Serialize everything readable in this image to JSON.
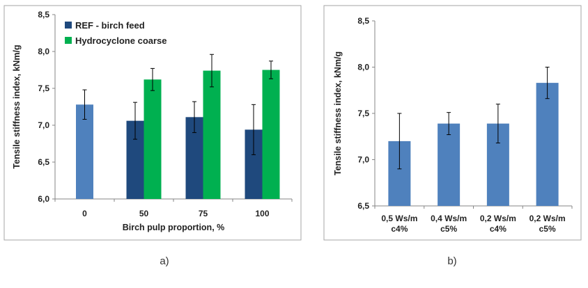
{
  "captions": {
    "a": "a)",
    "b": "b)"
  },
  "colors": {
    "ref": "#1f497d",
    "hydro": "#00b050",
    "blue": "#4f81bd",
    "frame": "#a6a6a6"
  },
  "chart_data": [
    {
      "type": "bar",
      "ylabel": "Tensile stiffness index, kNm/g",
      "xlabel": "Birch pulp proportion, %",
      "ylim": [
        6.0,
        8.5
      ],
      "yticks": [
        "6,0",
        "6,5",
        "7,0",
        "7,5",
        "8,0",
        "8,5"
      ],
      "categories": [
        "0",
        "50",
        "75",
        "100"
      ],
      "legend_position": "top-left",
      "legend": [
        "REF - birch feed",
        "Hydrocyclone coarse"
      ],
      "single_bar": {
        "category": "0",
        "value": 7.28,
        "err": 0.2
      },
      "series": [
        {
          "name": "REF - birch feed",
          "values": [
            null,
            7.06,
            7.11,
            6.94
          ],
          "err": [
            null,
            0.25,
            0.21,
            0.34
          ]
        },
        {
          "name": "Hydrocyclone coarse",
          "values": [
            null,
            7.62,
            7.74,
            7.75
          ],
          "err": [
            null,
            0.15,
            0.22,
            0.12
          ]
        }
      ]
    },
    {
      "type": "bar",
      "ylabel": "Tensile stiffness index, kNm/g",
      "xlabel": "",
      "ylim": [
        6.5,
        8.5
      ],
      "yticks": [
        "6,5",
        "7,0",
        "7,5",
        "8,0",
        "8,5"
      ],
      "categories": [
        [
          "0,5 Ws/m",
          "c4%"
        ],
        [
          "0,4 Ws/m",
          "c5%"
        ],
        [
          "0,2 Ws/m",
          "c4%"
        ],
        [
          "0,2 Ws/m",
          "c5%"
        ]
      ],
      "values": [
        7.2,
        7.39,
        7.39,
        7.83
      ],
      "err": [
        0.3,
        0.12,
        0.21,
        0.17
      ]
    }
  ]
}
